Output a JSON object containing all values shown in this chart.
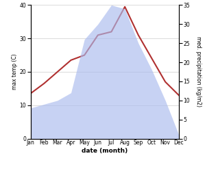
{
  "months": [
    "Jan",
    "Feb",
    "Mar",
    "Apr",
    "May",
    "Jun",
    "Jul",
    "Aug",
    "Sep",
    "Oct",
    "Nov",
    "Dec"
  ],
  "temperature": [
    13.5,
    16.5,
    20.0,
    23.5,
    25.0,
    31.0,
    32.0,
    39.5,
    31.0,
    24.0,
    17.0,
    13.0
  ],
  "precipitation": [
    8.0,
    9.0,
    10.0,
    12.0,
    26.0,
    30.0,
    35.0,
    34.0,
    25.0,
    18.0,
    10.0,
    1.0
  ],
  "temp_color": "#b03030",
  "precip_color": "#aabbee",
  "precip_fill_alpha": 0.65,
  "temp_ylim": [
    0,
    40
  ],
  "precip_ylim": [
    0,
    35
  ],
  "temp_yticks": [
    0,
    10,
    20,
    30,
    40
  ],
  "precip_yticks": [
    0,
    5,
    10,
    15,
    20,
    25,
    30,
    35
  ],
  "xlabel": "date (month)",
  "ylabel_left": "max temp (C)",
  "ylabel_right": "med. precipitation (kg/m2)",
  "background_color": "#ffffff",
  "grid_color": "#cccccc",
  "figwidth": 3.18,
  "figheight": 2.47,
  "dpi": 100
}
